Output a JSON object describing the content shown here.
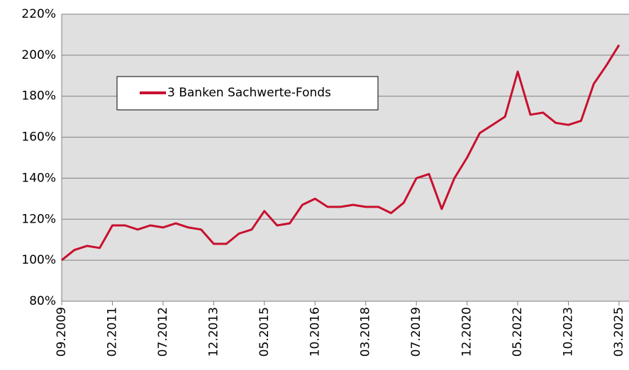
{
  "chart_data": {
    "type": "line",
    "x": [
      "09.2009",
      null,
      null,
      null,
      "02.2011",
      null,
      null,
      null,
      "07.2012",
      null,
      null,
      null,
      "12.2013",
      null,
      null,
      null,
      "05.2015",
      null,
      null,
      null,
      "10.2016",
      null,
      null,
      null,
      "03.2018",
      null,
      null,
      null,
      "07.2019",
      null,
      null,
      null,
      "12.2020",
      null,
      null,
      null,
      "05.2022",
      null,
      null,
      null,
      "10.2023",
      null,
      null,
      null,
      "03.2025"
    ],
    "series": [
      {
        "name": "3 Banken Sachwerte-Fonds",
        "color": "#c8102e",
        "values": [
          100,
          105,
          107,
          106,
          117,
          117,
          115,
          117,
          116,
          118,
          116,
          115,
          108,
          108,
          113,
          115,
          124,
          117,
          118,
          127,
          130,
          126,
          126,
          127,
          126,
          126,
          123,
          128,
          140,
          142,
          125,
          140,
          150,
          162,
          166,
          170,
          192,
          171,
          172,
          167,
          166,
          168,
          186,
          195,
          205
        ]
      }
    ],
    "ylim": [
      80,
      220
    ],
    "yticks": [
      {
        "value": 80,
        "label": "80%"
      },
      {
        "value": 100,
        "label": "100%"
      },
      {
        "value": 120,
        "label": "120%"
      },
      {
        "value": 140,
        "label": "140%"
      },
      {
        "value": 160,
        "label": "160%"
      },
      {
        "value": 180,
        "label": "180%"
      },
      {
        "value": 200,
        "label": "200%"
      },
      {
        "value": 220,
        "label": "220%"
      }
    ],
    "grid": true,
    "legend": "upper left"
  }
}
